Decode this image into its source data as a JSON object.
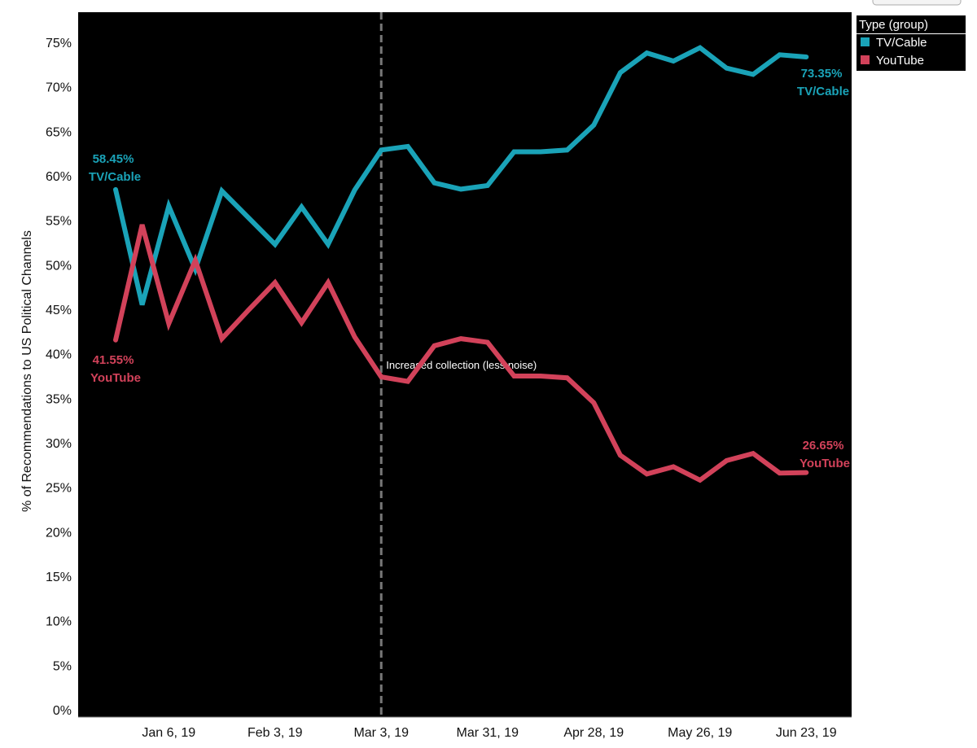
{
  "chart_data": {
    "type": "line",
    "ylabel": "% of Recommendations to US Political Channels",
    "ylim": [
      0,
      78
    ],
    "y_ticks": [
      "0%",
      "5%",
      "10%",
      "15%",
      "20%",
      "25%",
      "30%",
      "35%",
      "40%",
      "45%",
      "50%",
      "55%",
      "60%",
      "65%",
      "70%",
      "75%"
    ],
    "x_tick_labels": [
      "Jan 6, 19",
      "Feb 3, 19",
      "Mar 3, 19",
      "Mar 31, 19",
      "Apr 28, 19",
      "May 26, 19",
      "Jun 23, 19"
    ],
    "x": [
      "2018-12-23",
      "2018-12-30",
      "2019-01-06",
      "2019-01-13",
      "2019-01-20",
      "2019-01-27",
      "2019-02-03",
      "2019-02-10",
      "2019-02-17",
      "2019-02-24",
      "2019-03-03",
      "2019-03-10",
      "2019-03-17",
      "2019-03-24",
      "2019-03-31",
      "2019-04-07",
      "2019-04-14",
      "2019-04-21",
      "2019-04-28",
      "2019-05-05",
      "2019-05-12",
      "2019-05-19",
      "2019-05-26",
      "2019-06-02",
      "2019-06-09",
      "2019-06-16",
      "2019-06-23"
    ],
    "series": [
      {
        "name": "TV/Cable",
        "color": "#1aa3b8",
        "values": [
          58.45,
          45.5,
          56.6,
          49.5,
          58.3,
          55.3,
          52.3,
          56.5,
          52.3,
          58.4,
          62.9,
          63.3,
          59.2,
          58.5,
          58.9,
          62.7,
          62.7,
          62.9,
          65.7,
          71.6,
          73.8,
          72.9,
          74.4,
          72.1,
          71.4,
          73.6,
          73.35
        ],
        "start_label": {
          "value": "58.45%",
          "name": "TV/Cable"
        },
        "end_label": {
          "value": "73.35%",
          "name": "TV/Cable"
        }
      },
      {
        "name": "YouTube",
        "color": "#d2425a",
        "values": [
          41.55,
          54.5,
          43.4,
          50.5,
          41.7,
          44.9,
          48.0,
          43.5,
          48.0,
          41.9,
          37.4,
          36.9,
          40.9,
          41.7,
          41.3,
          37.5,
          37.5,
          37.3,
          34.5,
          28.6,
          26.5,
          27.3,
          25.8,
          28.0,
          28.8,
          26.6,
          26.65
        ],
        "start_label": {
          "value": "41.55%",
          "name": "YouTube"
        },
        "end_label": {
          "value": "26.65%",
          "name": "YouTube"
        }
      }
    ],
    "annotation": {
      "text": "Increased collection (less noise)",
      "x": "2019-03-03"
    },
    "legend": {
      "title": "Type (group)",
      "placement": "right-top",
      "items": [
        {
          "label": "TV/Cable",
          "color": "#1aa3b8"
        },
        {
          "label": "YouTube",
          "color": "#d2425a"
        }
      ]
    },
    "plot_background": "#000000",
    "grid": false
  }
}
